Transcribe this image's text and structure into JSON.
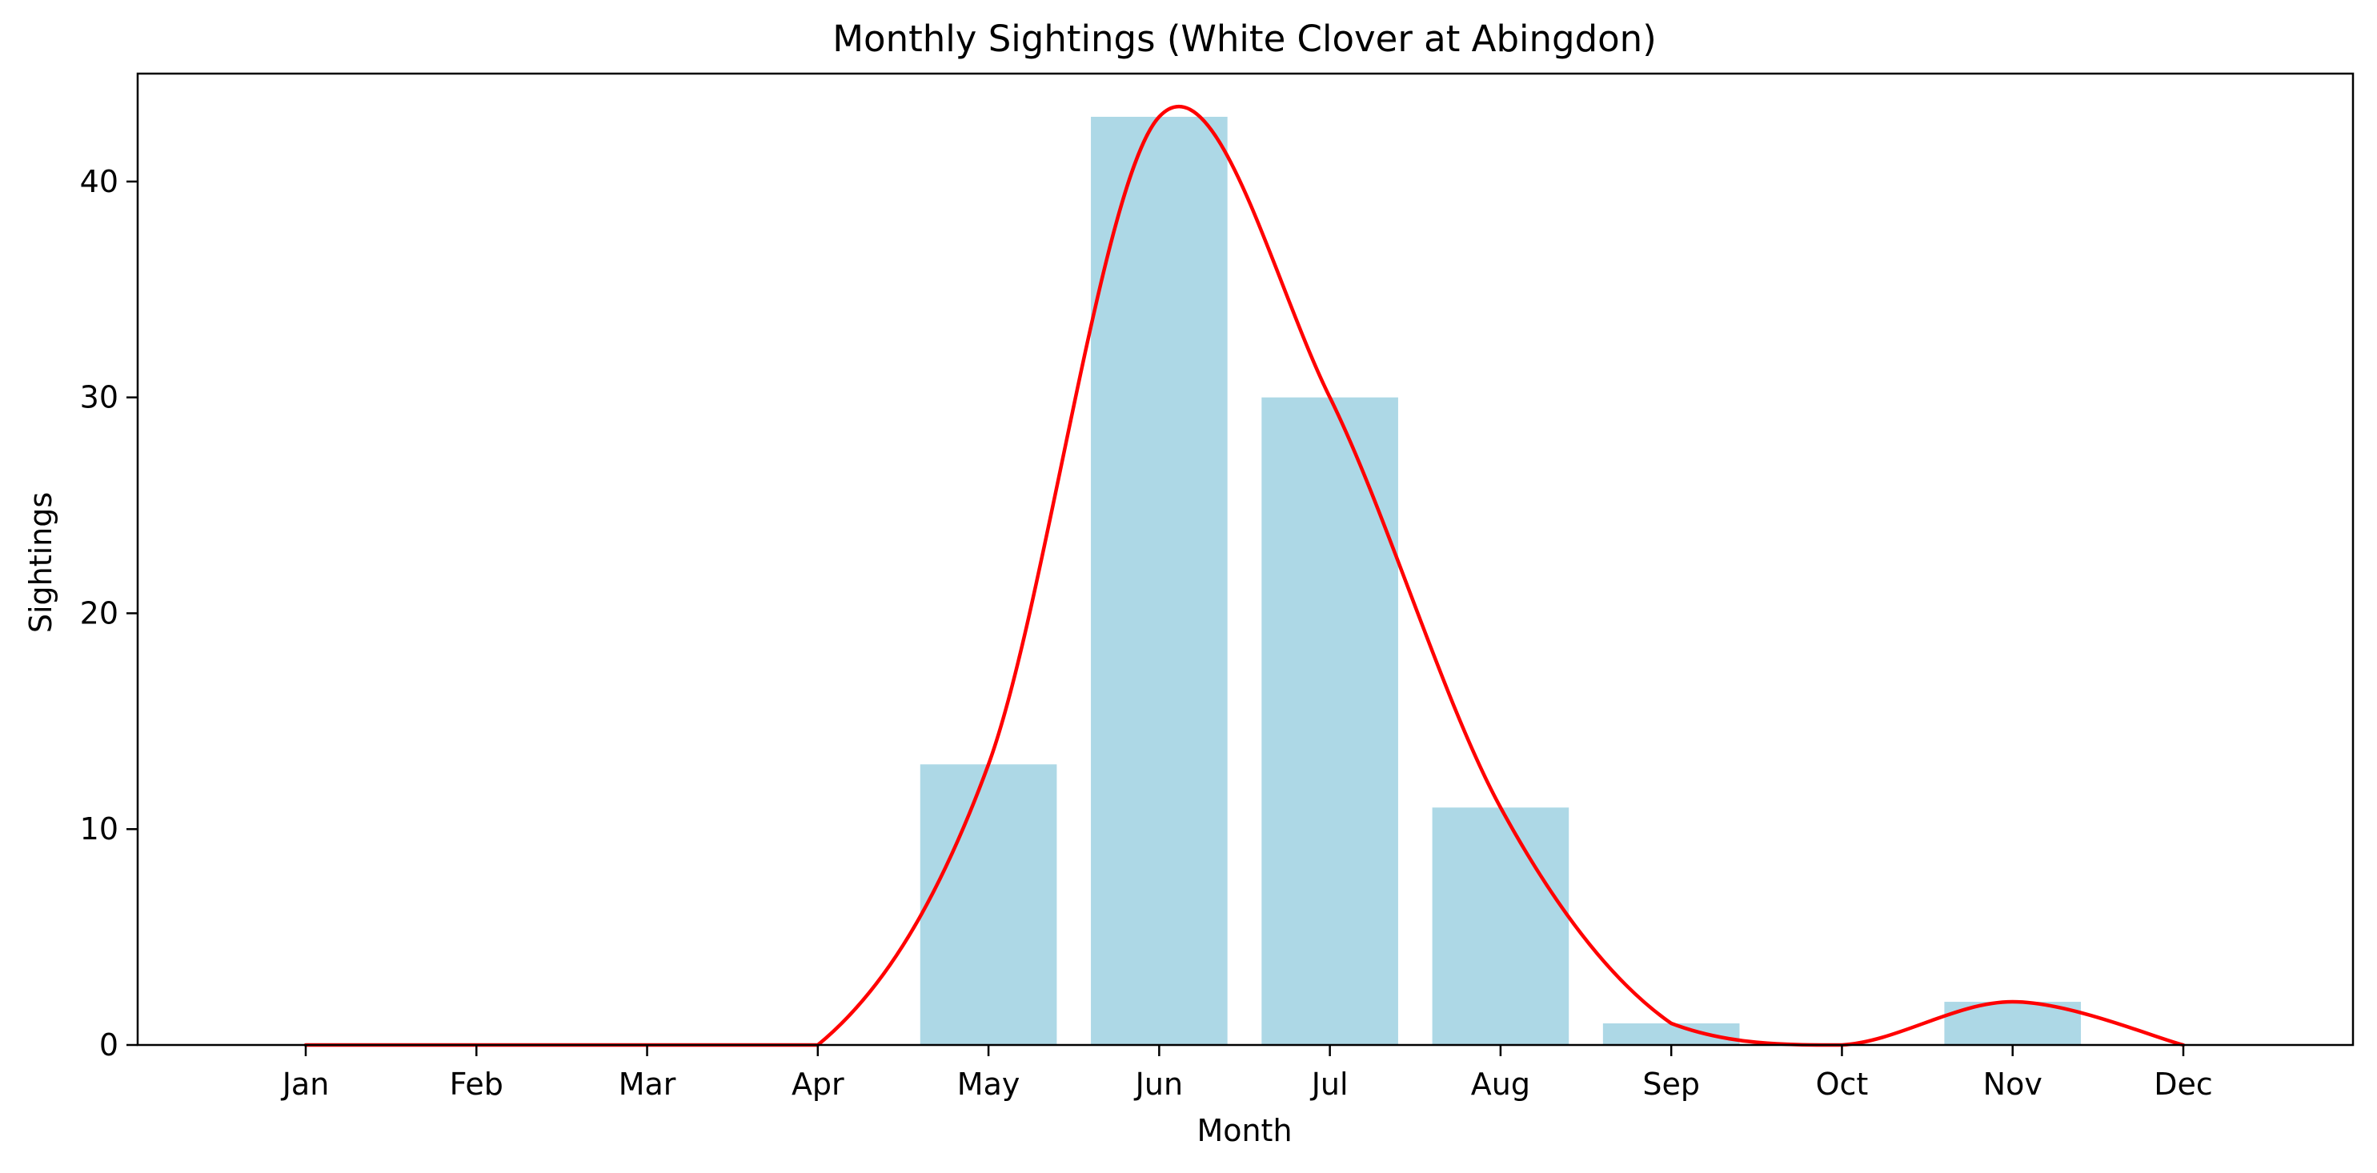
{
  "chart_data": {
    "type": "bar",
    "title": "Monthly Sightings (White Clover at Abingdon)",
    "xlabel": "Month",
    "ylabel": "Sightings",
    "categories": [
      "Jan",
      "Feb",
      "Mar",
      "Apr",
      "May",
      "Jun",
      "Jul",
      "Aug",
      "Sep",
      "Oct",
      "Nov",
      "Dec"
    ],
    "values": [
      0,
      0,
      0,
      0,
      13,
      43,
      30,
      11,
      1,
      0,
      2,
      0
    ],
    "ylim": [
      0,
      45
    ],
    "yticks": [
      0,
      10,
      20,
      30,
      40
    ],
    "grid": false,
    "overlay": {
      "type": "line",
      "smooth": true,
      "values": [
        0,
        0,
        0,
        0,
        13,
        43,
        30,
        11,
        1,
        0,
        2,
        0
      ]
    },
    "colors": {
      "bar": "#add8e6",
      "line": "#ff0000",
      "axes": "#000000"
    }
  }
}
